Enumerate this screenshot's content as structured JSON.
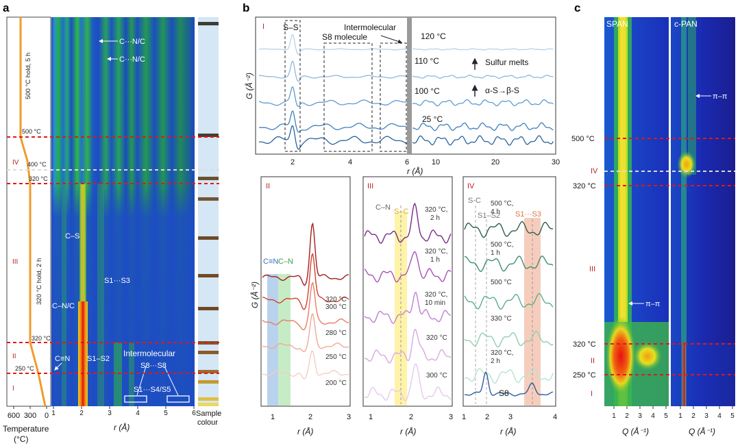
{
  "panels": {
    "a": {
      "letter": "a",
      "temp_axis_title": "Temperature",
      "temp_axis_unit": "(°C)",
      "temp_ticks": [
        "600",
        "300",
        "0"
      ],
      "r_axis_title": "r (Å)",
      "r_ticks": [
        "1",
        "2",
        "3",
        "4",
        "5",
        "6"
      ],
      "sample_title_1": "Sample",
      "sample_title_2": "colour",
      "stage_labels": [
        "IV",
        "III",
        "II",
        "I"
      ],
      "profile_labels": [
        "500 °C hold, 5 h",
        "500 °C",
        "400 °C",
        "320 °C",
        "320 °C hold, 2 h",
        "320 °C",
        "250 °C"
      ],
      "annotations": [
        "C···N/C",
        "C···N/C",
        "C–S",
        "S1···S3",
        "C–N/C",
        "C≡N",
        "S1–S2",
        "Intermolecular",
        "S8···S8",
        "S1···S4/S5"
      ],
      "sample_colors": [
        "#3e3a36",
        "#4a3c30",
        "#6b5030",
        "#755535",
        "#6e4a28",
        "#6f4b27",
        "#6d4a26",
        "#7a5a30",
        "#8a5a28",
        "#9a6a30",
        "#c49a30",
        "#e0c040",
        "#ead860"
      ]
    },
    "b": {
      "letter": "b",
      "top": {
        "roman": "I",
        "box_labels": [
          "S–S",
          "S8 molecule",
          "Intermolecular"
        ],
        "temps": [
          "120 °C",
          "110 °C",
          "100 °C",
          "25 °C"
        ],
        "notes": [
          "Sulfur melts",
          "α-S→β-S"
        ],
        "xticks_left": [
          "2",
          "4",
          "6"
        ],
        "xticks_right": [
          "10",
          "20",
          "30"
        ],
        "xlabel": "r (Å)",
        "ylabel": "G (Å⁻²)"
      },
      "bottom": {
        "ii": {
          "roman": "II",
          "temps": [
            "320 °C",
            "300 °C",
            "280 °C",
            "250 °C",
            "200 °C"
          ],
          "bands": [
            "C≡N",
            "C–N"
          ],
          "xticks": [
            "1",
            "2",
            "3"
          ]
        },
        "iii": {
          "roman": "III",
          "temps": [
            "320 °C,",
            "2 h",
            "320 °C,",
            "1 h",
            "320 °C,",
            "10 min",
            "320 °C",
            "300 °C"
          ],
          "bands": [
            "C–N",
            "S–C"
          ],
          "xticks": [
            "1",
            "2",
            "3"
          ]
        },
        "iv": {
          "roman": "IV",
          "temps": [
            "500 °C,",
            "4 h",
            "500 °C,",
            "1 h",
            "500 °C",
            "330 °C",
            "320 °C,",
            "2 h"
          ],
          "bands": [
            "S-C",
            "S1–S2",
            "S1···S3"
          ],
          "s8": "S8",
          "xticks": [
            "1",
            "2",
            "3",
            "4"
          ]
        },
        "xlabel": "r (Å)",
        "ylabel": "G (Å⁻²)"
      }
    },
    "c": {
      "letter": "c",
      "left_title": "SPAN",
      "right_title": "c-PAN",
      "temps": [
        "500 °C",
        "IV",
        "320 °C",
        "III",
        "320 °C",
        "II",
        "250 °C",
        "I"
      ],
      "pi_left": "π–π",
      "pi_right": "π–π",
      "xticks": [
        "1",
        "2",
        "3",
        "4",
        "5"
      ],
      "xlabel": "Q (Å⁻¹)"
    }
  }
}
